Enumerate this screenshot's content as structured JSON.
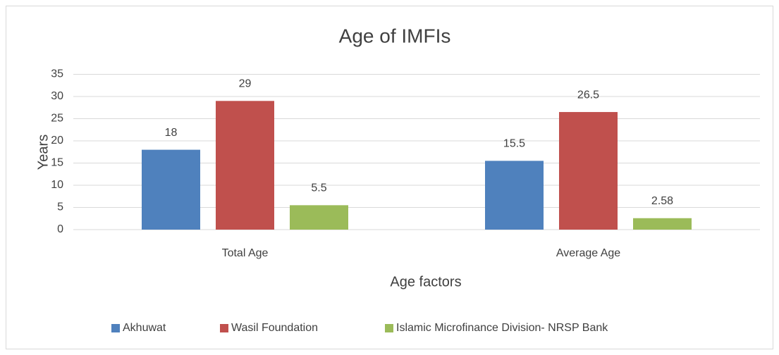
{
  "chart_data": {
    "type": "bar",
    "title": "Age of IMFIs",
    "x_label": "Age factors",
    "y_label": "Years",
    "categories": [
      "Total Age",
      "Average Age"
    ],
    "series": [
      {
        "name": "Akhuwat",
        "color": "#4f81bd",
        "values": [
          18,
          15.5
        ]
      },
      {
        "name": "Wasil Foundation",
        "color": "#c0504d",
        "values": [
          29,
          26.5
        ]
      },
      {
        "name": "Islamic Microfinance Division- NRSP Bank",
        "color": "#9bbb59",
        "values": [
          5.5,
          2.58
        ]
      }
    ],
    "ylim": [
      0,
      35
    ],
    "yticks": [
      0,
      5,
      10,
      15,
      20,
      25,
      30,
      35
    ],
    "grid": true,
    "legend": "bottom"
  }
}
